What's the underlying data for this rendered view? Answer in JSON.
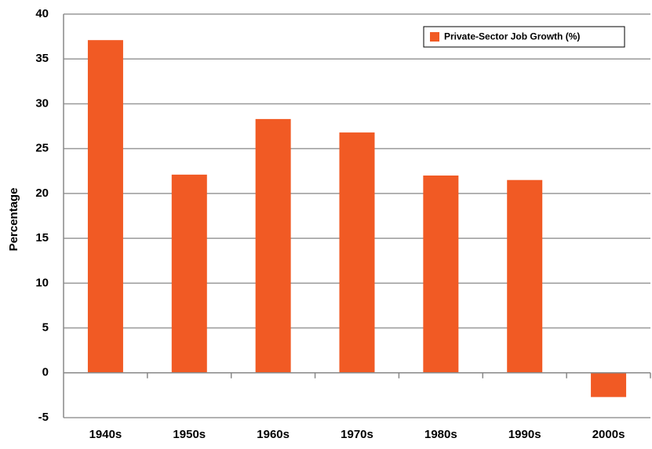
{
  "chart_data": {
    "type": "bar",
    "y_label": "Percentage",
    "categories": [
      "1940s",
      "1950s",
      "1960s",
      "1970s",
      "1980s",
      "1990s",
      "2000s"
    ],
    "series": [
      {
        "name": "Private-Sector Job Growth (%)",
        "color": "#f15a24",
        "values": [
          37.1,
          22.1,
          28.3,
          26.8,
          22.0,
          21.5,
          -2.7
        ]
      }
    ],
    "ylim": [
      -5,
      40
    ],
    "yticks": [
      -5,
      0,
      5,
      10,
      15,
      20,
      25,
      30,
      35,
      40
    ],
    "grid": true,
    "legend": "top-right"
  }
}
